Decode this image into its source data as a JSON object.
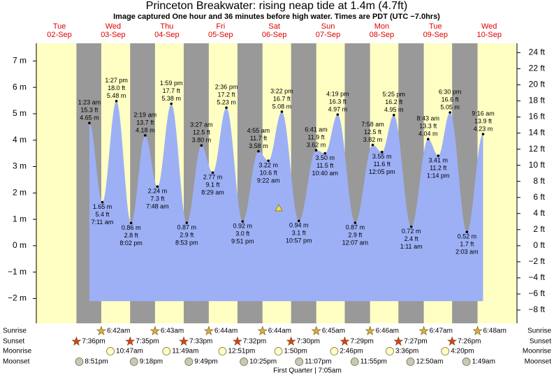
{
  "header": {
    "title": "Princeton Breakwater: rising  neap tide at 1.4m (4.7ft)",
    "subtitle": "Image captured One hour and 36 minutes before high water. Times are PDT (UTC −7.0hrs)"
  },
  "chart_data": {
    "type": "tide",
    "ylim": [
      -2.94,
      7.67
    ],
    "yticks": [
      {
        "value": -2,
        "label": "−2 m"
      },
      {
        "value": -1,
        "label": "−1 m"
      },
      {
        "value": 0,
        "label": "0 m"
      },
      {
        "value": 1,
        "label": "1 m"
      },
      {
        "value": 2,
        "label": "2 m"
      },
      {
        "value": 3,
        "label": "3 m"
      },
      {
        "value": 4,
        "label": "4 m"
      },
      {
        "value": 5,
        "label": "5 m"
      },
      {
        "value": 6,
        "label": "6 m"
      },
      {
        "value": 7,
        "label": "7 m"
      }
    ],
    "y2lim": [
      -9.65,
      25.16
    ],
    "y2ticks": [
      {
        "value": -8,
        "label": "−8 ft"
      },
      {
        "value": -6,
        "label": "−6 ft"
      },
      {
        "value": -4,
        "label": "−4 ft"
      },
      {
        "value": -2,
        "label": "−2 ft"
      },
      {
        "value": 0,
        "label": "0 ft"
      },
      {
        "value": 2,
        "label": "2 ft"
      },
      {
        "value": 4,
        "label": "4 ft"
      },
      {
        "value": 6,
        "label": "6 ft"
      },
      {
        "value": 8,
        "label": "8 ft"
      },
      {
        "value": 10,
        "label": "10 ft"
      },
      {
        "value": 12,
        "label": "12 ft"
      },
      {
        "value": 14,
        "label": "14 ft"
      },
      {
        "value": 16,
        "label": "16 ft"
      },
      {
        "value": 18,
        "label": "18 ft"
      },
      {
        "value": 20,
        "label": "20 ft"
      },
      {
        "value": 22,
        "label": "22 ft"
      },
      {
        "value": 24,
        "label": "24 ft"
      }
    ],
    "row_labels": [
      "Sunrise",
      "Sunset",
      "Moonrise",
      "Moonset"
    ],
    "moon_phase": "First Quarter | 7:05am",
    "days": [
      {
        "dow": "Tue",
        "date": "02-Sep",
        "tides": [],
        "sunrise": null,
        "sunset": "7:36pm",
        "moonrise": null,
        "moonset": "8:51pm"
      },
      {
        "dow": "Wed",
        "date": "03-Sep",
        "tides": [
          {
            "time": "1:23 am",
            "m": 4.65,
            "label_m": "4.65 m",
            "label_ft": "15.3 ft"
          },
          {
            "time": "7:11 am",
            "m": 1.65,
            "label_m": "1.65 m",
            "label_ft": "5.4 ft"
          },
          {
            "time": "1:27 pm",
            "m": 5.48,
            "label_m": "5.48 m",
            "label_ft": "18.0 ft"
          },
          {
            "time": "8:02 pm",
            "m": 0.86,
            "label_m": "0.86 m",
            "label_ft": "2.8 ft"
          }
        ],
        "sunrise": "6:42am",
        "sunset": "7:35pm",
        "moonrise": "10:47am",
        "moonset": "9:18pm"
      },
      {
        "dow": "Thu",
        "date": "04-Sep",
        "tides": [
          {
            "time": "2:19 am",
            "m": 4.18,
            "label_m": "4.18 m",
            "label_ft": "13.7 ft"
          },
          {
            "time": "7:48 am",
            "m": 2.24,
            "label_m": "2.24 m",
            "label_ft": "7.3 ft"
          },
          {
            "time": "1:59 pm",
            "m": 5.38,
            "label_m": "5.38 m",
            "label_ft": "17.7 ft"
          },
          {
            "time": "8:53 pm",
            "m": 0.87,
            "label_m": "0.87 m",
            "label_ft": "2.9 ft"
          }
        ],
        "sunrise": "6:43am",
        "sunset": "7:33pm",
        "moonrise": "11:49am",
        "moonset": "9:49pm"
      },
      {
        "dow": "Fri",
        "date": "05-Sep",
        "tides": [
          {
            "time": "3:27 am",
            "m": 3.8,
            "label_m": "3.80 m",
            "label_ft": "12.5 ft"
          },
          {
            "time": "8:29 am",
            "m": 2.77,
            "label_m": "2.77 m",
            "label_ft": "9.1 ft"
          },
          {
            "time": "2:36 pm",
            "m": 5.23,
            "label_m": "5.23 m",
            "label_ft": "17.2 ft"
          },
          {
            "time": "9:51 pm",
            "m": 0.92,
            "label_m": "0.92 m",
            "label_ft": "3.0 ft"
          }
        ],
        "sunrise": "6:44am",
        "sunset": "7:32pm",
        "moonrise": "12:51pm",
        "moonset": "10:25pm"
      },
      {
        "dow": "Sat",
        "date": "06-Sep",
        "tides": [
          {
            "time": "4:55 am",
            "m": 3.58,
            "label_m": "3.58 m",
            "label_ft": "11.7 ft"
          },
          {
            "time": "9:22 am",
            "m": 3.22,
            "label_m": "3.22 m",
            "label_ft": "10.6 ft"
          },
          {
            "time": "3:22 pm",
            "m": 5.08,
            "label_m": "5.08 m",
            "label_ft": "16.7 ft"
          },
          {
            "time": "10:57 pm",
            "m": 0.94,
            "label_m": "0.94 m",
            "label_ft": "3.1 ft"
          }
        ],
        "sunrise": "6:44am",
        "sunset": "7:30pm",
        "moonrise": "1:50pm",
        "moonset": "11:07pm"
      },
      {
        "dow": "Sun",
        "date": "07-Sep",
        "tides": [
          {
            "time": "6:41 am",
            "m": 3.62,
            "label_m": "3.62 m",
            "label_ft": "11.9 ft"
          },
          {
            "time": "10:40 am",
            "m": 3.5,
            "label_m": "3.50 m",
            "label_ft": "11.5 ft"
          },
          {
            "time": "4:19 pm",
            "m": 4.97,
            "label_m": "4.97 m",
            "label_ft": "16.3 ft"
          }
        ],
        "sunrise": "6:45am",
        "sunset": "7:29pm",
        "moonrise": "2:46pm",
        "moonset": "11:55pm"
      },
      {
        "dow": "Mon",
        "date": "08-Sep",
        "tides": [
          {
            "time": "12:07 am",
            "m": 0.87,
            "label_m": "0.87 m",
            "label_ft": "2.9 ft"
          },
          {
            "time": "7:58 am",
            "m": 3.82,
            "label_m": "3.82 m",
            "label_ft": "12.5 ft"
          },
          {
            "time": "12:05 pm",
            "m": 3.55,
            "label_m": "3.55 m",
            "label_ft": "11.6 ft"
          },
          {
            "time": "5:25 pm",
            "m": 4.95,
            "label_m": "4.95 m",
            "label_ft": "16.2 ft"
          }
        ],
        "sunrise": "6:46am",
        "sunset": "7:27pm",
        "moonrise": "3:36pm",
        "moonset": null
      },
      {
        "dow": "Tue",
        "date": "09-Sep",
        "tides": [
          {
            "time": "1:11 am",
            "m": 0.72,
            "label_m": "0.72 m",
            "label_ft": "2.4 ft"
          },
          {
            "time": "8:43 am",
            "m": 4.04,
            "label_m": "4.04 m",
            "label_ft": "13.3 ft"
          },
          {
            "time": "1:14 pm",
            "m": 3.41,
            "label_m": "3.41 m",
            "label_ft": "11.2 ft"
          },
          {
            "time": "6:30 pm",
            "m": 5.05,
            "label_m": "5.05 m",
            "label_ft": "16.6 ft"
          }
        ],
        "sunrise": "6:47am",
        "sunset": "7:26pm",
        "moonrise": "4:20pm",
        "moonset": "12:50am"
      },
      {
        "dow": "Wed",
        "date": "10-Sep",
        "tides": [
          {
            "time": "2:03 am",
            "m": 0.52,
            "label_m": "0.52 m",
            "label_ft": "1.7 ft"
          },
          {
            "time": "9:16 am",
            "m": 4.23,
            "label_m": "4.23 m",
            "label_ft": "13.9 ft"
          }
        ],
        "sunrise": "6:48am",
        "sunset": null,
        "moonrise": null,
        "moonset": "1:49am"
      }
    ]
  }
}
